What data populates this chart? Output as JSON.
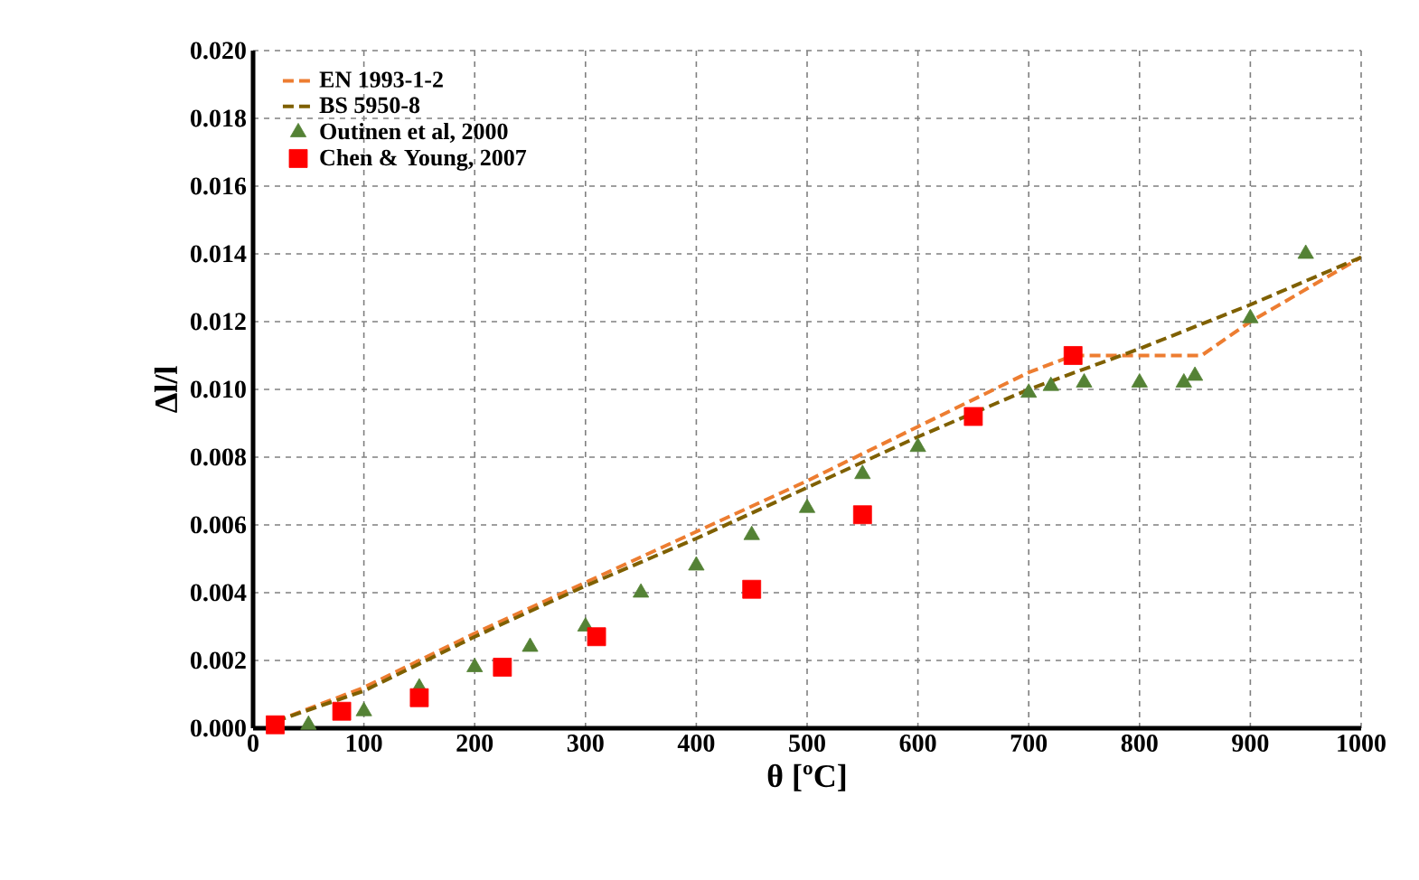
{
  "chart_data": {
    "type": "line",
    "xlabel": "θ [ºC]",
    "ylabel": "Δl/l",
    "xlim": [
      0,
      1000
    ],
    "xticks": [
      0,
      100,
      200,
      300,
      400,
      500,
      600,
      700,
      800,
      900,
      1000
    ],
    "ylim": [
      0,
      0.02
    ],
    "yticks": [
      {
        "value": 0,
        "label": "0.000"
      },
      {
        "value": 0.002,
        "label": "0.002"
      },
      {
        "value": 0.004,
        "label": "0.004"
      },
      {
        "value": 0.006,
        "label": "0.006"
      },
      {
        "value": 0.008,
        "label": "0.008"
      },
      {
        "value": 0.01,
        "label": "0.010"
      },
      {
        "value": 0.012,
        "label": "0.012"
      },
      {
        "value": 0.014,
        "label": "0.014"
      },
      {
        "value": 0.016,
        "label": "0.016"
      },
      {
        "value": 0.018,
        "label": "0.018"
      },
      {
        "value": 0.02,
        "label": "0.020"
      }
    ],
    "grid": true,
    "legend": "top left",
    "series": [
      {
        "name": "EN 1993-1-2",
        "line_style": "dashed",
        "marker": "none",
        "color": "#ed7d31",
        "x": [
          20,
          100,
          200,
          300,
          400,
          500,
          600,
          700,
          740,
          856,
          900,
          1000
        ],
        "values": [
          0.0002,
          0.0012,
          0.0028,
          0.0043,
          0.0058,
          0.0073,
          0.0089,
          0.0105,
          0.011,
          0.011,
          0.012,
          0.0139
        ]
      },
      {
        "name": "BS 5950-8",
        "line_style": "dashed",
        "marker": "none",
        "color": "#7f6000",
        "x": [
          20,
          100,
          200,
          300,
          400,
          500,
          600,
          700,
          800,
          900,
          1000
        ],
        "values": [
          0.0002,
          0.0011,
          0.0027,
          0.0042,
          0.0056,
          0.0071,
          0.0086,
          0.01,
          0.0112,
          0.0125,
          0.0139
        ]
      },
      {
        "name": "Outinen et al, 2000",
        "type": "scatter",
        "marker": "triangle",
        "color": "#548235",
        "x": [
          50,
          100,
          150,
          200,
          250,
          300,
          350,
          400,
          450,
          500,
          550,
          600,
          650,
          700,
          720,
          750,
          800,
          840,
          850,
          900,
          950
        ],
        "values": [
          0.0001,
          0.0005,
          0.0012,
          0.0018,
          0.0024,
          0.003,
          0.004,
          0.0048,
          0.0057,
          0.0065,
          0.0075,
          0.0083,
          null,
          0.0099,
          0.0101,
          0.0102,
          0.0102,
          0.0102,
          0.0104,
          0.0121,
          0.014
        ]
      },
      {
        "name": "Chen & Young, 2007",
        "type": "scatter",
        "marker": "square",
        "color": "#ff0000",
        "x": [
          20,
          80,
          150,
          225,
          310,
          450,
          550,
          650,
          740
        ],
        "values": [
          0.0001,
          0.0005,
          0.0009,
          0.0018,
          0.0027,
          0.0041,
          0.0063,
          0.0092,
          0.011
        ]
      }
    ]
  }
}
